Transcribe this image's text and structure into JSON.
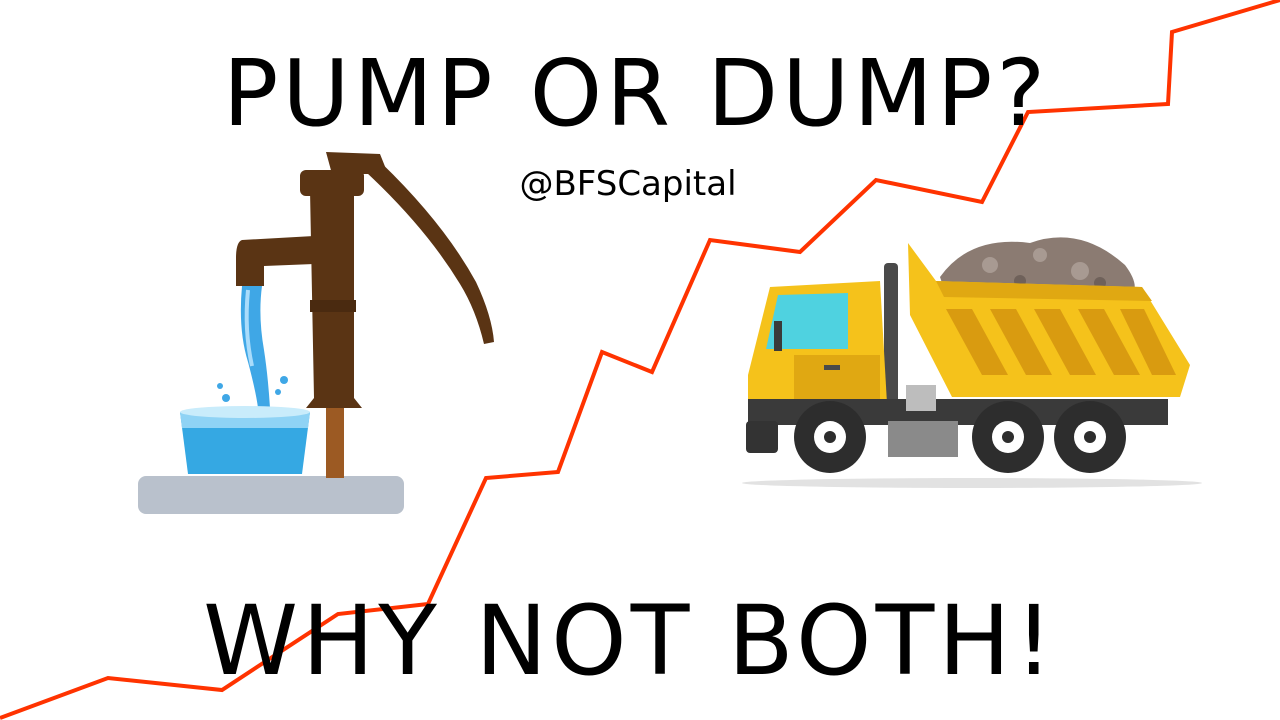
{
  "title": "PUMP OR DUMP?",
  "handle": "@BFSCapital",
  "tagline": "WHY NOT BOTH!",
  "illustrations": {
    "left": "water-pump-icon",
    "right": "dump-truck-icon"
  },
  "colors": {
    "trend_line": "#ff3300",
    "pump_brown": "#5a3414",
    "water": "#3fa7e6",
    "truck_yellow": "#f5c21b",
    "truck_window": "#4fd2e0",
    "dirt": "#8b7b72"
  }
}
